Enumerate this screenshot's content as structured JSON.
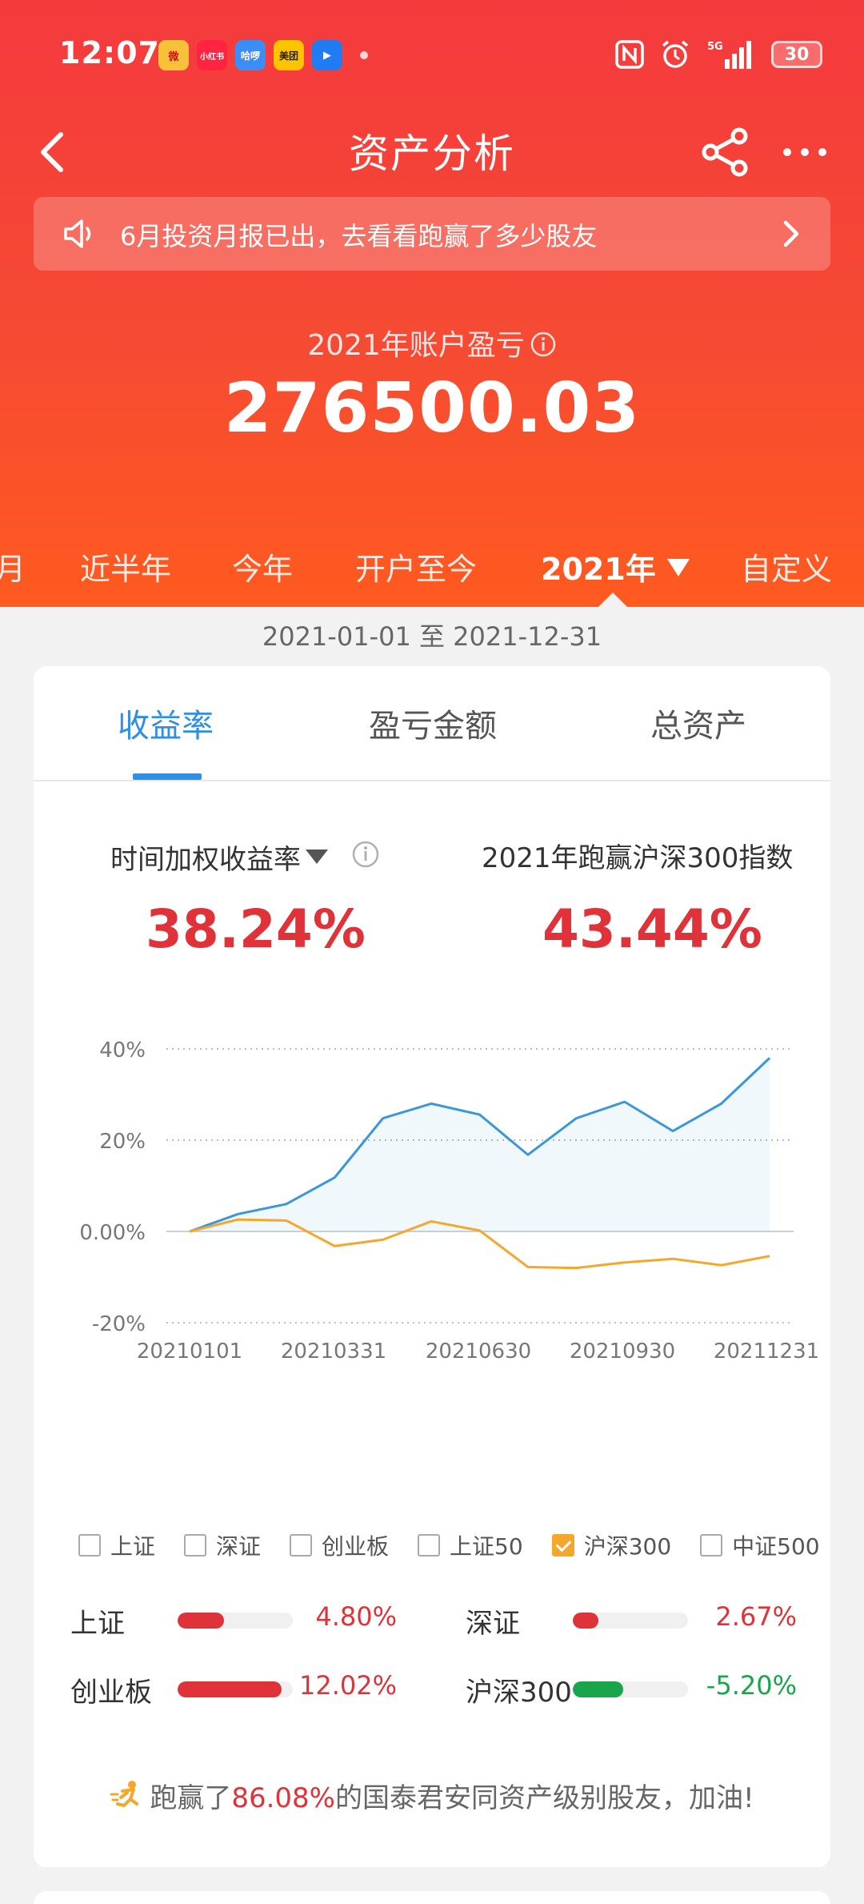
{
  "status_bar": {
    "time": "12:07",
    "apps": [
      {
        "name": "weibo",
        "label": "微",
        "color": "#f7c23a"
      },
      {
        "name": "xiaohongshu",
        "label": "小红书",
        "color": "#ff2442"
      },
      {
        "name": "app-blue",
        "label": "哈啰",
        "color": "#3a8ef6"
      },
      {
        "name": "meituan",
        "label": "美团",
        "color": "#ffc300"
      },
      {
        "name": "app-arrow",
        "label": "▶",
        "color": "#1f7cf2"
      }
    ],
    "network": "5G",
    "battery": "30"
  },
  "navbar": {
    "title": "资产分析"
  },
  "notice": {
    "text": "6月投资月报已出，去看看跑赢了多少股友"
  },
  "summary": {
    "label": "2021年账户盈亏",
    "value": "276500.03"
  },
  "period_tabs": [
    {
      "label": "月"
    },
    {
      "label": "近半年"
    },
    {
      "label": "今年"
    },
    {
      "label": "开户至今"
    },
    {
      "label": "2021年",
      "active": true
    },
    {
      "label": "自定义"
    }
  ],
  "date_range": "2021-01-01 至 2021-12-31",
  "card_tabs": [
    {
      "label": "收益率",
      "active": true
    },
    {
      "label": "盈亏金额"
    },
    {
      "label": "总资产"
    }
  ],
  "metrics": {
    "left_label": "时间加权收益率",
    "left_value": "38.24%",
    "right_label": "2021年跑赢沪深300指数",
    "right_value": "43.44%"
  },
  "chart_data": {
    "type": "line",
    "x_tick_labels": [
      "20210101",
      "20210331",
      "20210630",
      "20210930",
      "20211231"
    ],
    "y_tick_labels": [
      "40%",
      "20%",
      "0.00%",
      "-20%"
    ],
    "ylim": [
      -20,
      40
    ],
    "y_ticks": [
      40,
      20,
      0,
      -20
    ],
    "grid": true,
    "series": [
      {
        "color": "#3b97db",
        "fill": true,
        "values": [
          0,
          3.8,
          6,
          11.8,
          24.8,
          28,
          25.6,
          16.8,
          24.8,
          28.4,
          22,
          28,
          38
        ]
      },
      {
        "color": "#f4a72a",
        "fill": false,
        "values": [
          0,
          2.6,
          2.4,
          -3.2,
          -1.8,
          2.2,
          0.2,
          -7.8,
          -8,
          -6.8,
          -6,
          -7.4,
          -5.4
        ]
      }
    ]
  },
  "legend": [
    {
      "label": "上证",
      "checked": false
    },
    {
      "label": "深证",
      "checked": false
    },
    {
      "label": "创业板",
      "checked": false
    },
    {
      "label": "上证50",
      "checked": false
    },
    {
      "label": "沪深300",
      "checked": true
    },
    {
      "label": "中证500",
      "checked": false
    }
  ],
  "indices": [
    {
      "name": "上证",
      "value": "4.80%",
      "fraction": 0.4,
      "color": "#e03339"
    },
    {
      "name": "深证",
      "value": "2.67%",
      "fraction": 0.22,
      "color": "#e03339"
    },
    {
      "name": "创业板",
      "value": "12.02%",
      "fraction": 0.9,
      "color": "#e03339"
    },
    {
      "name": "沪深300",
      "value": "-5.20%",
      "fraction": 0.44,
      "color": "#19a64a"
    }
  ],
  "footer": {
    "prefix": "跑赢了",
    "highlight": "86.08%",
    "suffix": "的国泰君安同资产级别股友，加油!"
  }
}
